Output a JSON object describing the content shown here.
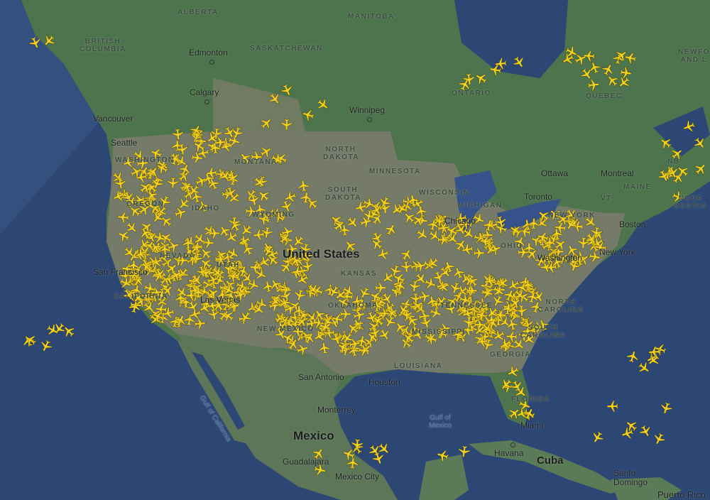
{
  "map": {
    "colors": {
      "ocean": "#2d4775",
      "land_canada": "#4d744c",
      "land_us": "#7d7c6d",
      "land_mexico": "#5d7658",
      "aircraft": "#f5d31c"
    },
    "aircraft_icon": "airplane-icon",
    "regions": {
      "alberta": "ALBERTA",
      "manitoba": "MANITOBA",
      "british_columbia": "BRITISH COLUMBIA",
      "saskatchewan": "SASKATCHEWAN",
      "ontario": "ONTARIO",
      "quebec": "QUEBEC",
      "newfoundland": "NEWFO AND L",
      "north_dakota": "NORTH DAKOTA",
      "minnesota": "MINNESOTA",
      "washington": "WASHINGTON",
      "montana": "MONTANA",
      "south_dakota": "SOUTH DAKOTA",
      "wisconsin": "WISCONSIN",
      "michigan": "MICHIGAN",
      "oregon": "OREGON",
      "idaho": "IDAHO",
      "wyoming": "WYOMING",
      "ohio": "OHIO",
      "nevada": "NEVADA",
      "utah": "UTAH",
      "california": "CALIFORNIA",
      "kansas": "KANSAS",
      "new_mexico": "NEW MEXICO",
      "oklahoma": "OKLAHOMA",
      "tennessee": "TENNESSEE",
      "mississippi": "MISSISSIPPI",
      "louisiana": "LOUISIANA",
      "georgia": "GEORGIA",
      "florida": "FLORIDA",
      "north_carolina": "NORTH CAROLINA",
      "south_carolina": "SOUTH CAROLINA",
      "nb": "NB",
      "maine": "MAINE",
      "vt": "VT",
      "ny": "NEW YORK",
      "nova_scotia": "NOVA SCOTIA"
    },
    "cities": {
      "edmonton": "Edmonton",
      "calgary": "Calgary",
      "winnipeg": "Winnipeg",
      "vancouver": "Vancouver",
      "seattle": "Seattle",
      "ottawa": "Ottawa",
      "montreal": "Montreal",
      "toronto": "Toronto",
      "chicago": "Chicago",
      "boston": "Boston",
      "new_york": "New York",
      "washington": "Washington",
      "san_francisco": "San Francisco",
      "las_vegas": "Las Vegas",
      "san_antonio": "San Antonio",
      "houston": "Houston",
      "monterrey": "Monterrey",
      "miami": "Miami",
      "guadalajara": "Guadalajara",
      "mexico_city": "Mexico City",
      "havana": "Havana",
      "santo_domingo": "Santo Domingo",
      "puerto_rico": "Puerto Rico"
    },
    "countries": {
      "united_states": "United States",
      "mexico": "Mexico",
      "cuba": "Cuba"
    },
    "waters": {
      "gulf_of_california": "Gulf of California",
      "gulf_of_mexico": "Gulf of Mexico"
    }
  }
}
